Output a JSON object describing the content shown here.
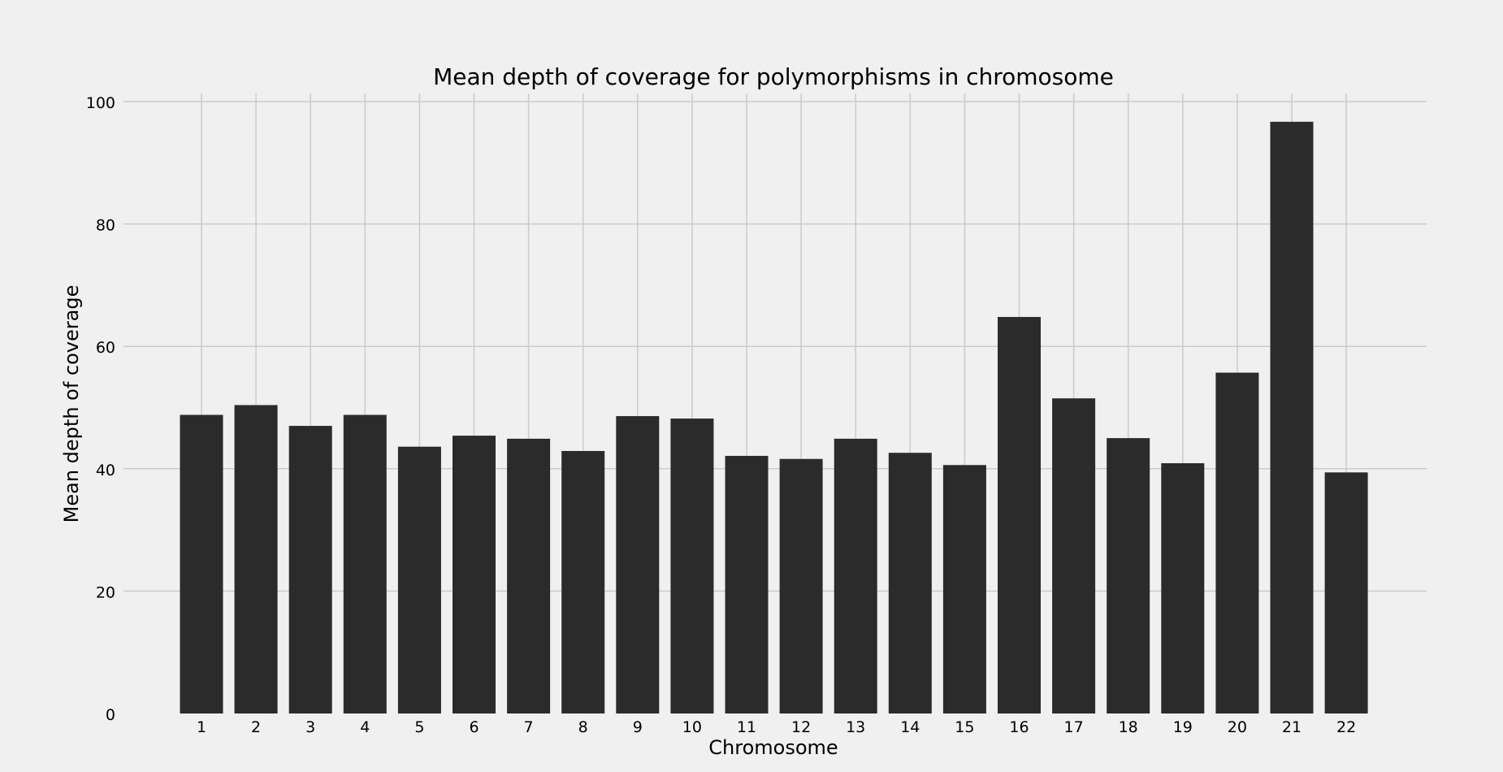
{
  "chart_data": {
    "type": "bar",
    "title": "Mean depth of coverage for polymorphisms in chromosome",
    "xlabel": "Chromosome",
    "ylabel": "Mean depth of coverage",
    "categories": [
      "1",
      "2",
      "3",
      "4",
      "5",
      "6",
      "7",
      "8",
      "9",
      "10",
      "11",
      "12",
      "13",
      "14",
      "15",
      "16",
      "17",
      "18",
      "19",
      "20",
      "21",
      "22"
    ],
    "values": [
      48.8,
      50.4,
      47.0,
      48.8,
      43.6,
      45.4,
      44.9,
      42.9,
      48.6,
      48.2,
      42.1,
      41.6,
      44.9,
      42.6,
      40.6,
      64.8,
      51.5,
      45.0,
      40.9,
      55.7,
      96.7,
      39.4
    ],
    "ylim": [
      0,
      100
    ],
    "yticks": [
      0,
      20,
      40,
      60,
      80,
      100
    ],
    "grid": true,
    "legend": "none",
    "colors": {
      "background": "#f0f0f0",
      "bar": "#2b2b2b",
      "grid": "#cbcbcb",
      "text": "#000000"
    }
  }
}
